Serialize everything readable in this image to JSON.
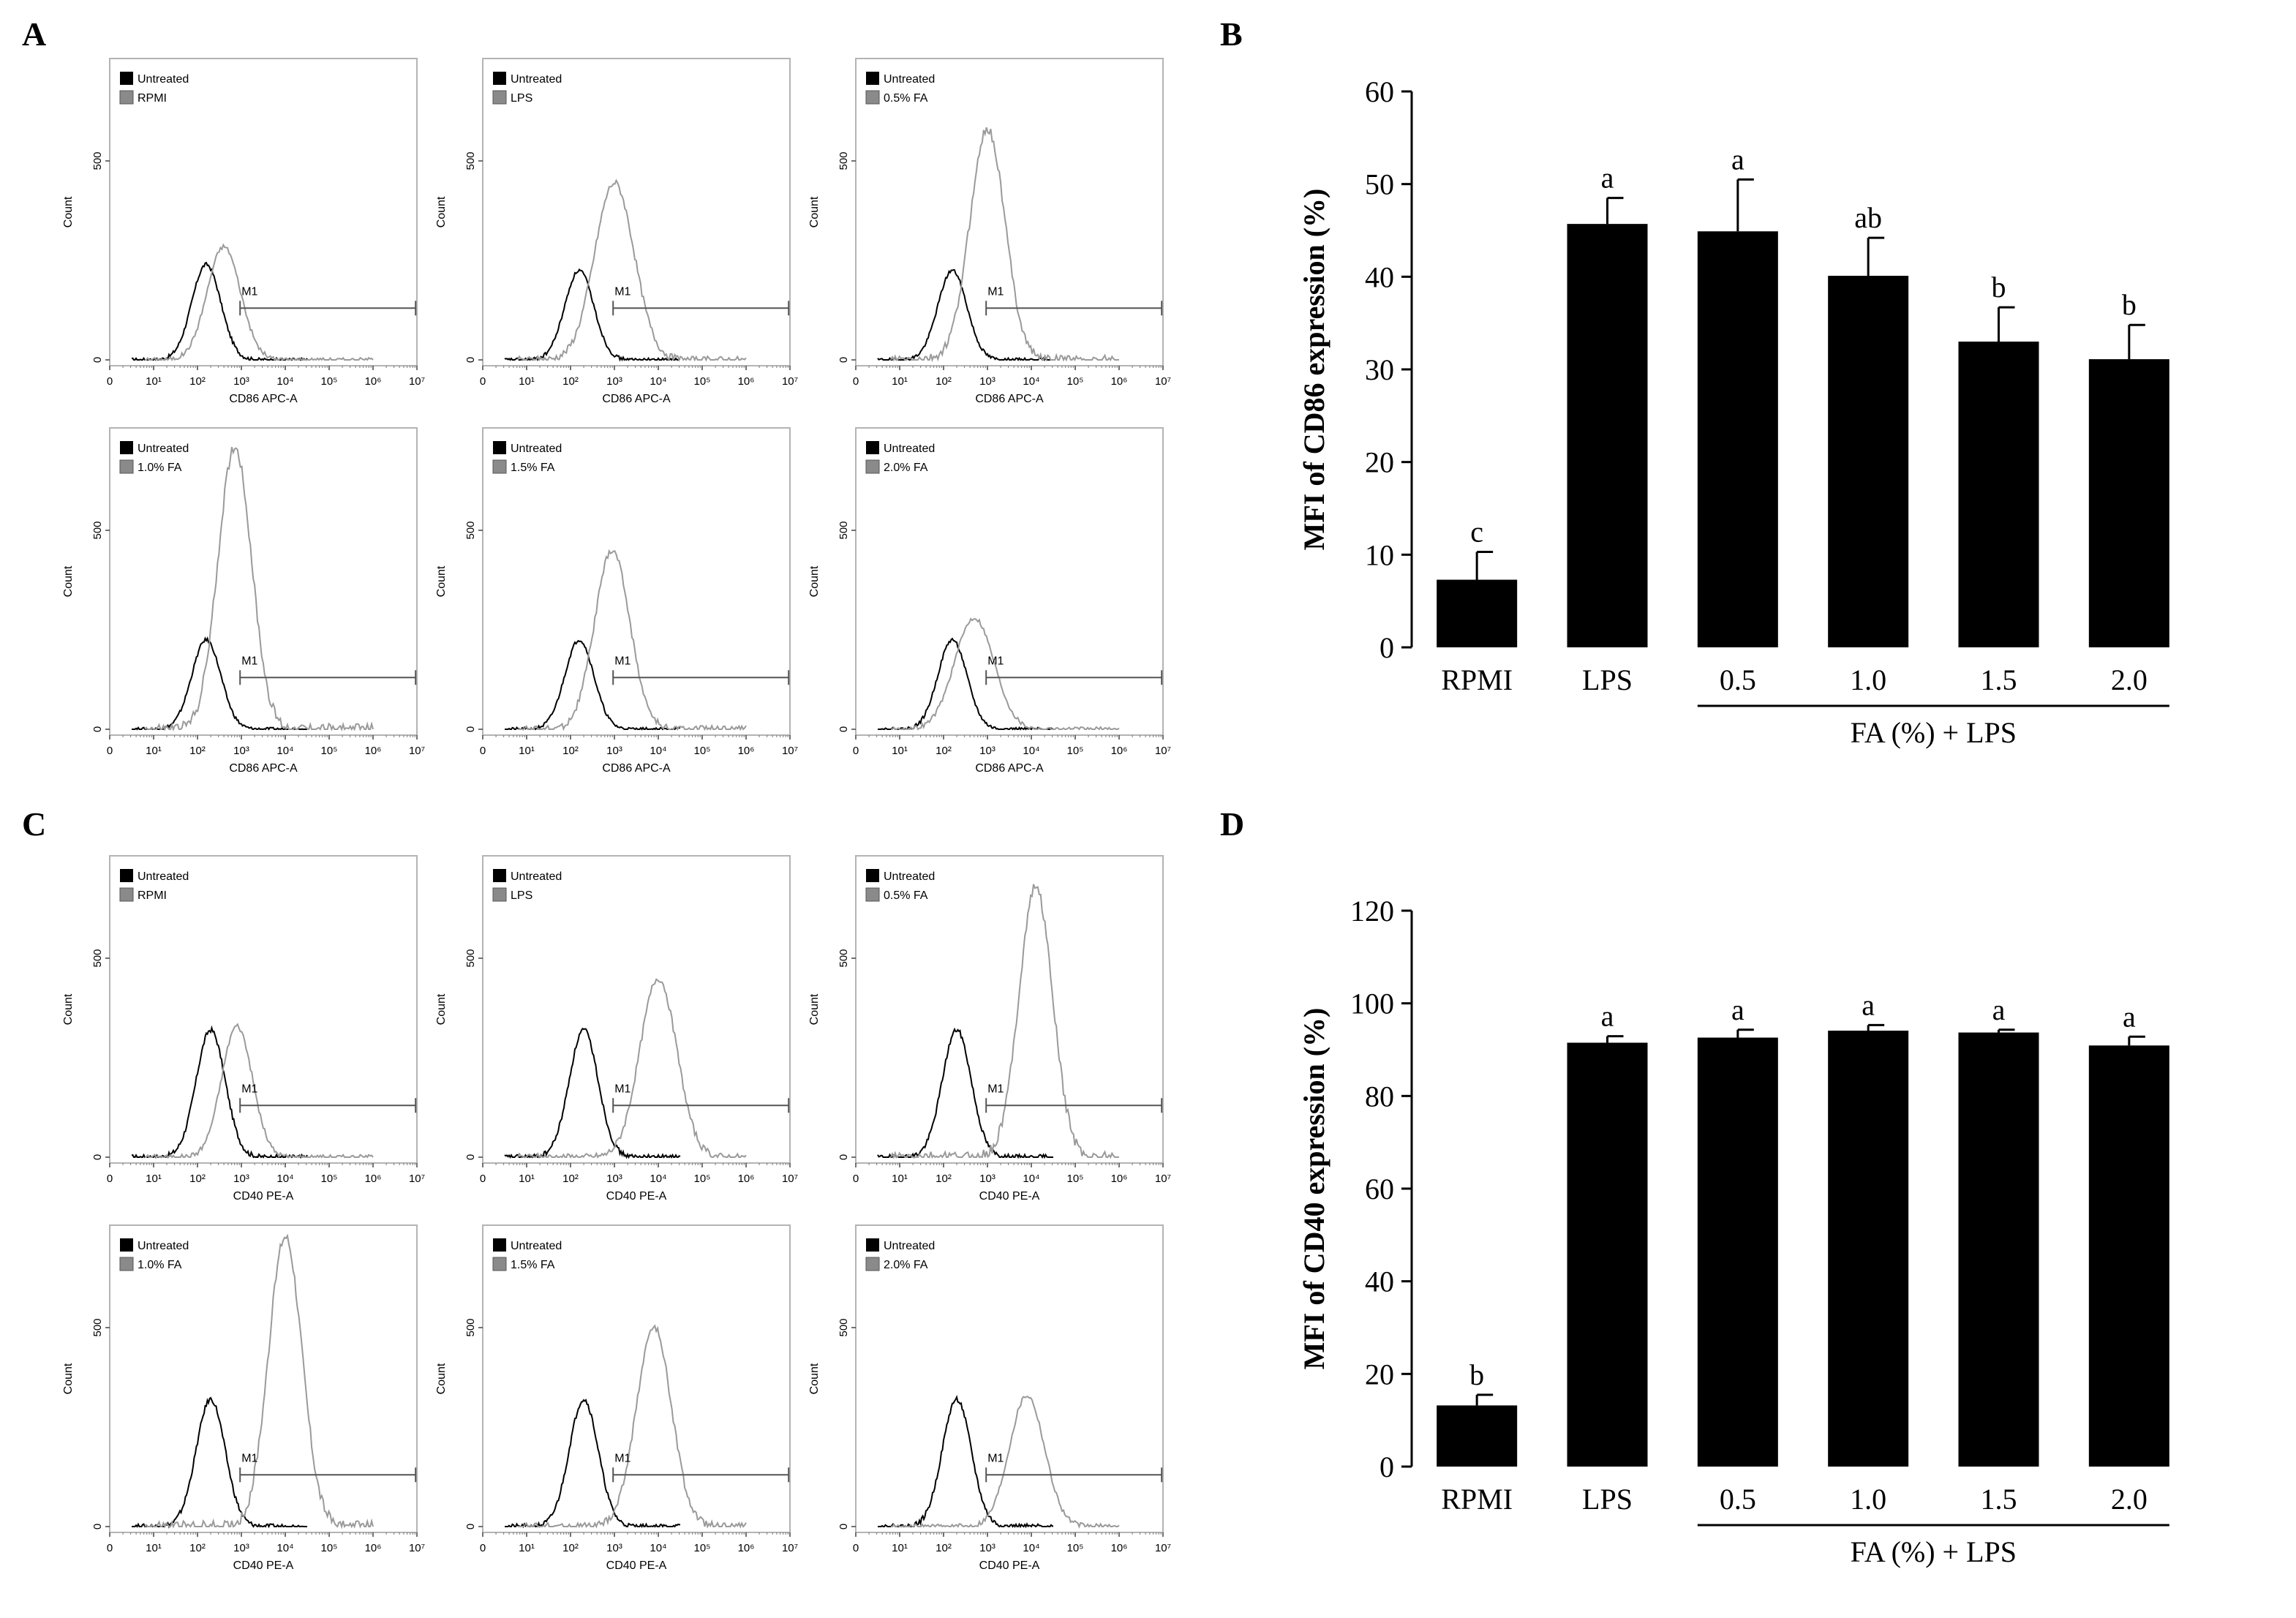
{
  "histogram_style": {
    "untreated_color": "#000000",
    "treated_color": "#9a9a9a",
    "marker_color": "#555555",
    "frame_color": "#b4b4b4"
  },
  "chart_data": [
    {
      "id": "A",
      "type": "histogram-grid",
      "panel_label": "A",
      "marker": "CD86",
      "x_axis_label": "CD86 APC-A",
      "y_axis_label": "Count",
      "x_tick_labels": [
        "0",
        "10¹",
        "10²",
        "10³",
        "10⁴",
        "10⁵",
        "10⁶",
        "10⁷"
      ],
      "y_tick_labels": [
        "0",
        "500"
      ],
      "gate_label": "M1",
      "legend_reference": "Untreated",
      "panels": [
        {
          "condition": "RPMI",
          "ref_peak_x": 2.2,
          "ref_peak_count": 240,
          "peak_x": 2.6,
          "peak_count": 285,
          "width": 0.38
        },
        {
          "condition": "LPS",
          "ref_peak_x": 2.2,
          "ref_peak_count": 225,
          "peak_x": 3.0,
          "peak_count": 445,
          "width": 0.45
        },
        {
          "condition": "0.5% FA",
          "ref_peak_x": 2.2,
          "ref_peak_count": 225,
          "peak_x": 3.0,
          "peak_count": 580,
          "width": 0.4
        },
        {
          "condition": "1.0% FA",
          "ref_peak_x": 2.2,
          "ref_peak_count": 225,
          "peak_x": 2.85,
          "peak_count": 710,
          "width": 0.38
        },
        {
          "condition": "1.5% FA",
          "ref_peak_x": 2.2,
          "ref_peak_count": 225,
          "peak_x": 2.95,
          "peak_count": 450,
          "width": 0.4
        },
        {
          "condition": "2.0% FA",
          "ref_peak_x": 2.2,
          "ref_peak_count": 225,
          "peak_x": 2.7,
          "peak_count": 280,
          "width": 0.45
        }
      ]
    },
    {
      "id": "B",
      "type": "bar",
      "panel_label": "B",
      "ylabel": "MFI of CD86 expression (%)",
      "ylim": [
        0,
        60
      ],
      "yticks": [
        0,
        10,
        20,
        30,
        40,
        50,
        60
      ],
      "categories": [
        "RPMI",
        "LPS",
        "0.5",
        "1.0",
        "1.5",
        "2.0"
      ],
      "values": [
        7.3,
        45.7,
        44.9,
        40.1,
        33.0,
        31.1
      ],
      "errors": [
        3.0,
        2.8,
        5.6,
        4.1,
        3.7,
        3.7
      ],
      "significance": [
        "c",
        "a",
        "a",
        "ab",
        "b",
        "b"
      ],
      "group_label": "FA (%) + LPS",
      "group_start": 2,
      "group_end": 5
    },
    {
      "id": "C",
      "type": "histogram-grid",
      "panel_label": "C",
      "marker": "CD40",
      "x_axis_label": "CD40 PE-A",
      "y_axis_label": "Count",
      "x_tick_labels": [
        "0",
        "10¹",
        "10²",
        "10³",
        "10⁴",
        "10⁵",
        "10⁶",
        "10⁷"
      ],
      "y_tick_labels": [
        "0",
        "500"
      ],
      "gate_label": "M1",
      "legend_reference": "Untreated",
      "panels": [
        {
          "condition": "RPMI",
          "ref_peak_x": 2.3,
          "ref_peak_count": 320,
          "peak_x": 2.9,
          "peak_count": 330,
          "width": 0.35
        },
        {
          "condition": "LPS",
          "ref_peak_x": 2.3,
          "ref_peak_count": 320,
          "peak_x": 4.0,
          "peak_count": 450,
          "width": 0.42
        },
        {
          "condition": "0.5% FA",
          "ref_peak_x": 2.3,
          "ref_peak_count": 320,
          "peak_x": 4.1,
          "peak_count": 680,
          "width": 0.38
        },
        {
          "condition": "1.0% FA",
          "ref_peak_x": 2.3,
          "ref_peak_count": 320,
          "peak_x": 4.0,
          "peak_count": 730,
          "width": 0.38
        },
        {
          "condition": "1.5% FA",
          "ref_peak_x": 2.3,
          "ref_peak_count": 320,
          "peak_x": 3.9,
          "peak_count": 500,
          "width": 0.4
        },
        {
          "condition": "2.0% FA",
          "ref_peak_x": 2.3,
          "ref_peak_count": 320,
          "peak_x": 3.9,
          "peak_count": 330,
          "width": 0.4
        }
      ]
    },
    {
      "id": "D",
      "type": "bar",
      "panel_label": "D",
      "ylabel": "MFI of CD40 expression (%)",
      "ylim": [
        0,
        120
      ],
      "yticks": [
        0,
        20,
        40,
        60,
        80,
        100,
        120
      ],
      "categories": [
        "RPMI",
        "LPS",
        "0.5",
        "1.0",
        "1.5",
        "2.0"
      ],
      "values": [
        13.2,
        91.5,
        92.6,
        94.1,
        93.7,
        90.9
      ],
      "errors": [
        2.3,
        1.4,
        1.7,
        1.2,
        0.6,
        1.9
      ],
      "significance": [
        "b",
        "a",
        "a",
        "a",
        "a",
        "a"
      ],
      "group_label": "FA (%) + LPS",
      "group_start": 2,
      "group_end": 5
    }
  ]
}
